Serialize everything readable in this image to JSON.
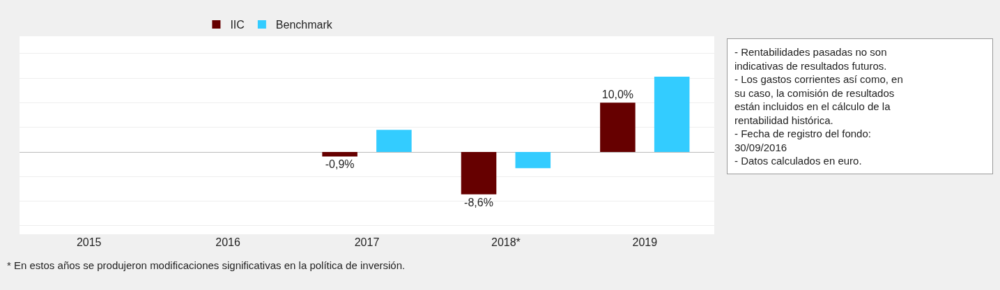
{
  "chart_data": {
    "type": "bar",
    "categories": [
      "2015",
      "2016",
      "2017",
      "2018*",
      "2019"
    ],
    "series": [
      {
        "name": "IIC",
        "color": "#660000",
        "values": [
          null,
          null,
          -0.9,
          -8.6,
          10.0
        ],
        "value_labels": [
          null,
          null,
          "-0,9%",
          "-8,6%",
          "10,0%"
        ]
      },
      {
        "name": "Benchmark",
        "color": "#33ccff",
        "values": [
          null,
          null,
          4.5,
          -3.3,
          15.3
        ]
      }
    ],
    "ylim": [
      -16.7,
      23.5
    ],
    "yticks": [
      {
        "value": -15,
        "label": null
      },
      {
        "value": -10,
        "label": null
      },
      {
        "value": -5,
        "label": null
      },
      {
        "value": 0,
        "label": null
      },
      {
        "value": 5,
        "label": null
      },
      {
        "value": 10,
        "label": null
      },
      {
        "value": 15,
        "label": null
      },
      {
        "value": 20,
        "label": null
      }
    ],
    "tick_labels": "x",
    "grid": "y",
    "legend": "top",
    "annotations": [
      "- Rentabilidades pasadas no son\nindicativas de resultados futuros.\n- Los gastos corrientes así como, en\nsu caso, la comisión de resultados\nestán incluidos en el cálculo de la\nrentabilidad histórica.\n- Fecha de registro del fondo:\n30/09/2016\n- Datos calculados en euro.",
      "* En estos años se produjeron modificaciones significativas en la política de inversión."
    ]
  }
}
